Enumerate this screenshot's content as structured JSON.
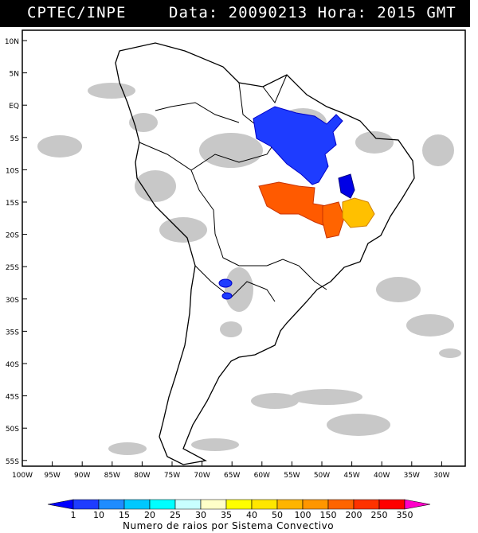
{
  "header": {
    "left": "CPTEC/INPE",
    "right": "Data: 20090213 Hora: 2015 GMT"
  },
  "map": {
    "lat_labels": [
      "10N",
      "5N",
      "EQ",
      "5S",
      "10S",
      "15S",
      "20S",
      "25S",
      "30S",
      "35S",
      "40S",
      "45S",
      "50S",
      "55S"
    ],
    "lon_labels": [
      "100W",
      "95W",
      "90W",
      "85W",
      "80W",
      "75W",
      "70W",
      "65W",
      "60W",
      "55W",
      "50W",
      "45W",
      "40W",
      "35W",
      "30W"
    ],
    "lon_range": [
      -100,
      -27
    ],
    "lat_range": [
      -56,
      12
    ],
    "colors": {
      "cloud": "#c8c8c8",
      "coast": "#000000",
      "frame": "#000000"
    }
  },
  "legend": {
    "values": [
      "1",
      "10",
      "15",
      "20",
      "25",
      "30",
      "35",
      "40",
      "50",
      "100",
      "150",
      "200",
      "250",
      "350"
    ],
    "colors": [
      "#0000ff",
      "#1e3cff",
      "#1e8cff",
      "#00c8ff",
      "#00ffff",
      "#c8ffff",
      "#ffffc8",
      "#ffff00",
      "#ffe600",
      "#ffb400",
      "#ff9600",
      "#ff6400",
      "#ff3200",
      "#ff0000",
      "#ff00c8"
    ],
    "label": "Numero de raios por Sistema Convectivo"
  },
  "lightning_clusters": [
    {
      "name": "amazon-cluster",
      "lon": -55,
      "lat": -5,
      "level": "1-10"
    },
    {
      "name": "goias-cluster",
      "lon": -56,
      "lat": -15,
      "level": "200-250"
    },
    {
      "name": "minas-cluster-orange",
      "lon": -47,
      "lat": -18,
      "level": "200-250"
    },
    {
      "name": "minas-cluster-yellow",
      "lon": -44,
      "lat": -17,
      "level": "40-100"
    },
    {
      "name": "argentina-cluster",
      "lon": -65,
      "lat": -28,
      "level": "1-10"
    },
    {
      "name": "bahia-cluster",
      "lon": -45,
      "lat": -12,
      "level": "1-10"
    }
  ]
}
